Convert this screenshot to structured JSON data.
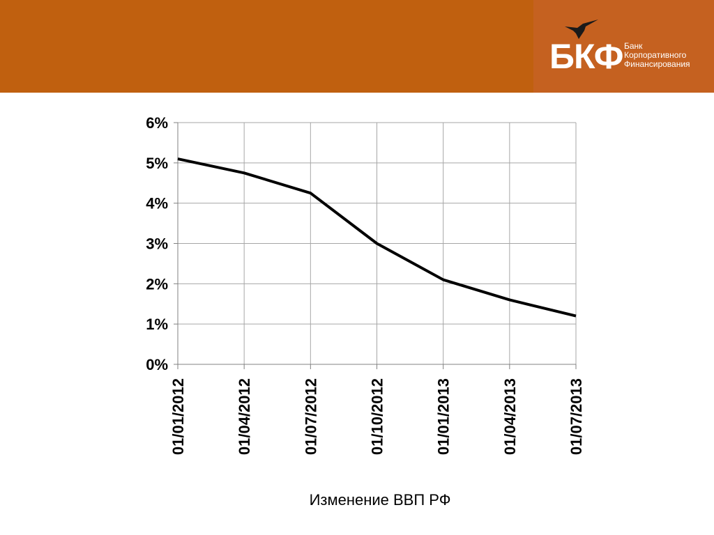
{
  "header": {
    "brand_color": "#c0600f",
    "logo": {
      "mark": "БКФ",
      "lines": [
        "Банк",
        "Корпоративного",
        "Финансирования"
      ],
      "icon": "hummingbird-icon"
    }
  },
  "chart_data": {
    "type": "line",
    "caption": "Изменение ВВП РФ",
    "categories": [
      "01/01/2012",
      "01/04/2012",
      "01/07/2012",
      "01/10/2012",
      "01/01/2013",
      "01/04/2013",
      "01/07/2013"
    ],
    "values": [
      5.1,
      4.75,
      4.25,
      3.0,
      2.1,
      1.6,
      1.2
    ],
    "ylim": [
      0,
      6
    ],
    "yticks": [
      "0%",
      "1%",
      "2%",
      "3%",
      "4%",
      "5%",
      "6%"
    ],
    "grid": true,
    "line_color": "#000000"
  }
}
